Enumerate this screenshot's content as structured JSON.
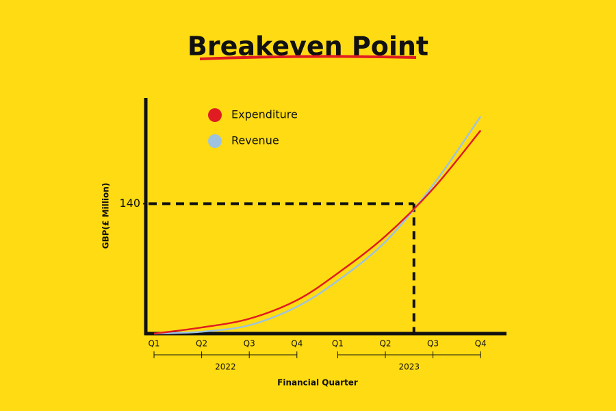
{
  "chart_data": {
    "type": "line",
    "title": "Breakeven Point",
    "x_label": "Financial Quarter",
    "y_label": "GBP(£ Million)",
    "groups": [
      {
        "name": "2022",
        "categories": [
          "Q1",
          "Q2",
          "Q3",
          "Q4"
        ]
      },
      {
        "name": "2023",
        "categories": [
          "Q1",
          "Q2",
          "Q3",
          "Q4"
        ]
      }
    ],
    "series": [
      {
        "name": "Expenditure",
        "color": "#e01b22",
        "values": [
          0,
          6.6,
          16,
          36,
          65,
          105,
          156,
          219
        ]
      },
      {
        "name": "Revenue",
        "color": "#9ec3e0",
        "values": [
          0,
          2,
          9,
          29,
          57,
          99,
          160,
          234
        ]
      }
    ],
    "ylim": [
      0,
      254
    ],
    "yticks": [
      140
    ],
    "grid": false,
    "legend": "top-left",
    "background": "#fedb12"
  }
}
